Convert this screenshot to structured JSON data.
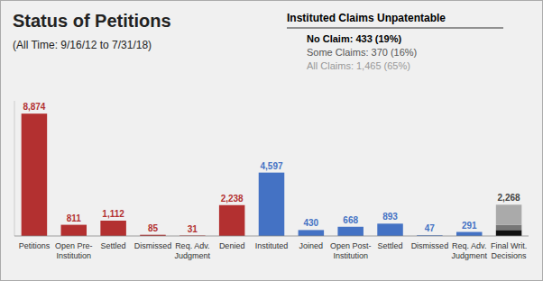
{
  "chart_data": {
    "type": "bar",
    "title": "Status of Petitions",
    "subtitle": "(All Time: 9/16/12 to 7/31/18)",
    "categories": [
      "Petitions",
      "Open Pre-\nInstitution",
      "Settled",
      "Dismissed",
      "Req. Adv.\nJudgment",
      "Denied",
      "Instituted",
      "Joined",
      "Open Post-\nInstitution",
      "Settled",
      "Dismissed",
      "Req. Adv.\nJudgment",
      "Final Writ.\nDecisions"
    ],
    "values": [
      8874,
      811,
      1112,
      85,
      31,
      2238,
      4597,
      430,
      668,
      893,
      47,
      291,
      2268
    ],
    "value_labels": [
      "8,874",
      "811",
      "1,112",
      "85",
      "31",
      "2,238",
      "4,597",
      "430",
      "668",
      "893",
      "47",
      "291",
      "2,268"
    ],
    "colors": [
      "#b33030",
      "#b33030",
      "#b33030",
      "#b33030",
      "#b33030",
      "#b33030",
      "#4472c4",
      "#4472c4",
      "#4472c4",
      "#4472c4",
      "#4472c4",
      "#4472c4",
      "#444444"
    ],
    "segments": {
      "values": [
        433,
        370,
        1465
      ],
      "colors": [
        "#111111",
        "#777777",
        "#aaaaaa"
      ]
    },
    "annotation": {
      "title": "Instituted Claims Unpatentable",
      "lines": [
        "No Claim: 433 (19%)",
        "Some Claims: 370 (16%)",
        "All Claims: 1,465 (65%)"
      ],
      "colors": [
        "#000000",
        "#555555",
        "#999999"
      ]
    },
    "ylim": [
      0,
      9800
    ],
    "data_labels": true,
    "tick_labels": "x",
    "grid": false
  }
}
